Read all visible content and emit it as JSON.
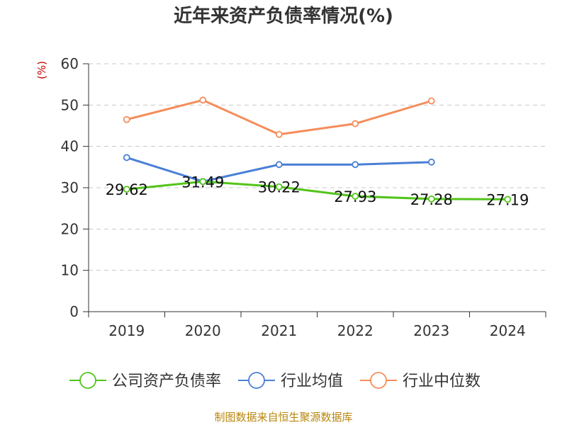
{
  "title": "近年来资产负债率情况(%)",
  "source": "制图数据来自恒生聚源数据库",
  "chart_data": {
    "type": "line",
    "title": "近年来资产负债率情况(%)",
    "unit": "(%)",
    "categories": [
      "2019",
      "2020",
      "2021",
      "2022",
      "2023",
      "2024"
    ],
    "ylim": [
      0,
      60
    ],
    "yticks": [
      0,
      10,
      20,
      30,
      40,
      50,
      60
    ],
    "grid": true,
    "legend_position": "bottom",
    "series": [
      {
        "name": "公司资产负债率",
        "color": "#52c41a",
        "values": [
          29.62,
          31.49,
          30.22,
          27.93,
          27.28,
          27.19
        ],
        "labels": true
      },
      {
        "name": "行业均值",
        "color": "#4a7fd6",
        "values": [
          37.3,
          31.5,
          35.6,
          35.6,
          36.2,
          null
        ],
        "labels": false
      },
      {
        "name": "行业中位数",
        "color": "#f58d5a",
        "values": [
          46.5,
          51.2,
          42.9,
          45.5,
          51.0,
          null
        ],
        "labels": false
      }
    ]
  }
}
